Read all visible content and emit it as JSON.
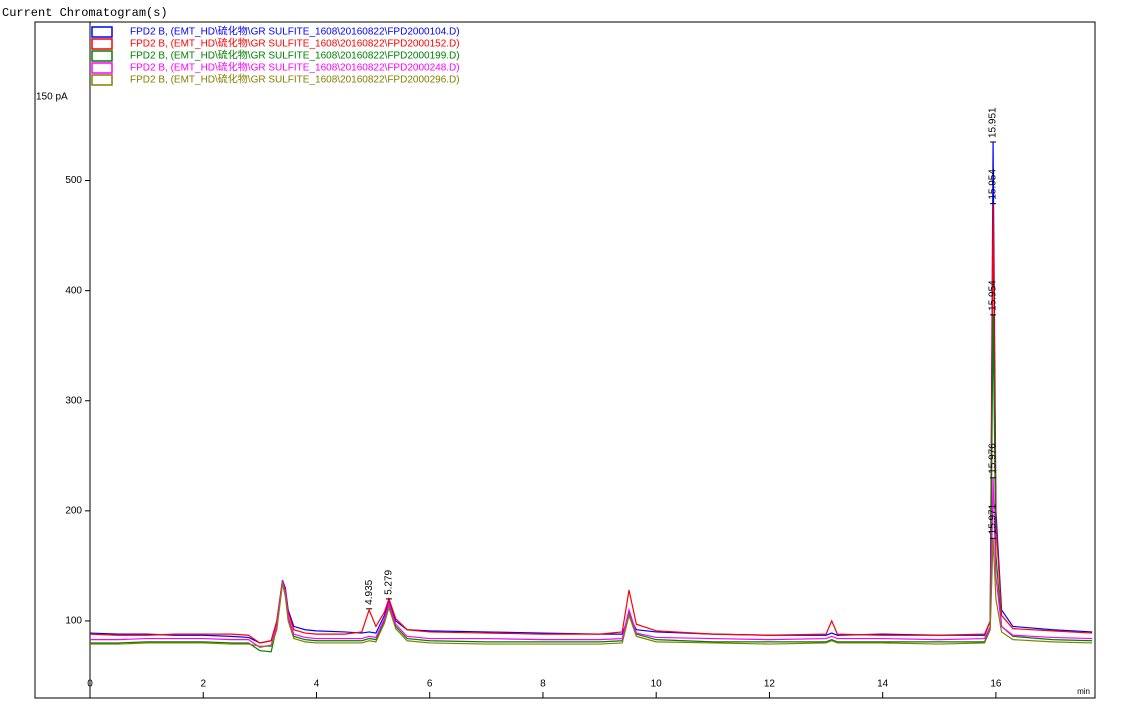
{
  "chart_data": {
    "type": "line",
    "header": "Current Chromatogram(s)",
    "ylabel": "150 pA",
    "xlabel": "min",
    "x": [
      0,
      0.5,
      1,
      1.5,
      2,
      2.5,
      2.8,
      3.0,
      3.2,
      3.3,
      3.4,
      3.45,
      3.5,
      3.6,
      3.8,
      4.0,
      4.5,
      4.8,
      4.93,
      5.05,
      5.2,
      5.28,
      5.4,
      5.6,
      6,
      7,
      8,
      9,
      9.4,
      9.52,
      9.65,
      10,
      11,
      12,
      13,
      13.1,
      13.2,
      14,
      15,
      15.8,
      15.9,
      15.95,
      16.0,
      16.1,
      16.3,
      17,
      17.7
    ],
    "series": [
      {
        "name": "FPD2 B, (EMT_HD\\硫化物\\GR SULFITE_1608\\20160822\\FPD2000104.D)",
        "color": "#0000ff",
        "values": [
          89,
          88,
          88,
          87,
          87,
          86,
          85,
          80,
          82,
          100,
          137,
          130,
          110,
          95,
          92,
          91,
          90,
          89,
          90,
          89,
          105,
          118,
          100,
          92,
          91,
          90,
          89,
          88,
          88,
          105,
          92,
          90,
          88,
          87,
          87,
          89,
          87,
          88,
          87,
          87,
          100,
          535,
          200,
          110,
          95,
          92,
          90
        ]
      },
      {
        "name": "FPD2 B, (EMT_HD\\硫化物\\GR SULFITE_1608\\20160822\\FPD2000152.D)",
        "color": "#ff0000",
        "values": [
          88,
          87,
          87,
          88,
          88,
          88,
          87,
          80,
          82,
          100,
          137,
          128,
          108,
          92,
          89,
          88,
          88,
          90,
          110,
          95,
          108,
          120,
          102,
          92,
          90,
          89,
          88,
          88,
          90,
          128,
          97,
          91,
          88,
          87,
          88,
          100,
          88,
          87,
          87,
          88,
          100,
          479,
          190,
          105,
          93,
          91,
          89
        ]
      },
      {
        "name": "FPD2 B, (EMT_HD\\硫化物\\GR SULFITE_1608\\20160822\\FPD2000199.D)",
        "color": "#008000",
        "values": [
          80,
          80,
          81,
          81,
          81,
          80,
          80,
          73,
          72,
          95,
          136,
          125,
          102,
          86,
          83,
          82,
          82,
          82,
          84,
          83,
          100,
          115,
          95,
          84,
          82,
          81,
          81,
          81,
          82,
          108,
          88,
          83,
          81,
          81,
          81,
          83,
          81,
          81,
          81,
          81,
          95,
          378,
          160,
          95,
          86,
          83,
          82
        ]
      },
      {
        "name": "FPD2 B, (EMT_HD\\硫化物\\GR SULFITE_1608\\20160822\\FPD2000248.D)",
        "color": "#ff00ff",
        "values": [
          83,
          83,
          84,
          84,
          84,
          83,
          83,
          76,
          78,
          96,
          136,
          126,
          104,
          88,
          85,
          84,
          84,
          84,
          86,
          85,
          102,
          116,
          97,
          86,
          84,
          84,
          83,
          83,
          84,
          110,
          89,
          85,
          84,
          83,
          84,
          86,
          84,
          84,
          83,
          84,
          95,
          230,
          140,
          95,
          87,
          85,
          84
        ]
      },
      {
        "name": "FPD2 B, (EMT_HD\\硫化物\\GR SULFITE_1608\\20160822\\FPD2000296.D)",
        "color": "#808000",
        "values": [
          79,
          79,
          80,
          80,
          80,
          79,
          79,
          77,
          77,
          92,
          134,
          122,
          100,
          84,
          81,
          80,
          80,
          80,
          82,
          81,
          98,
          112,
          93,
          82,
          80,
          79,
          79,
          79,
          80,
          105,
          86,
          81,
          80,
          79,
          80,
          82,
          80,
          80,
          79,
          80,
          92,
          175,
          120,
          90,
          83,
          81,
          80
        ]
      }
    ],
    "annotations": [
      {
        "text": "4.935",
        "x": 4.93,
        "y": 111
      },
      {
        "text": "5.279",
        "x": 5.28,
        "y": 120
      },
      {
        "text": "15.951",
        "x": 15.95,
        "y": 535
      },
      {
        "text": "15.954",
        "x": 15.95,
        "y": 479
      },
      {
        "text": "15.954",
        "x": 15.95,
        "y": 378
      },
      {
        "text": "15.976",
        "x": 15.95,
        "y": 230
      },
      {
        "text": "15.971",
        "x": 15.95,
        "y": 175
      }
    ],
    "xlim": [
      0,
      17.75
    ],
    "ylim": [
      30,
      644
    ],
    "xticks": [
      0,
      2,
      4,
      6,
      8,
      10,
      12,
      14,
      16
    ],
    "yticks": [
      100,
      200,
      300,
      400,
      500
    ]
  }
}
